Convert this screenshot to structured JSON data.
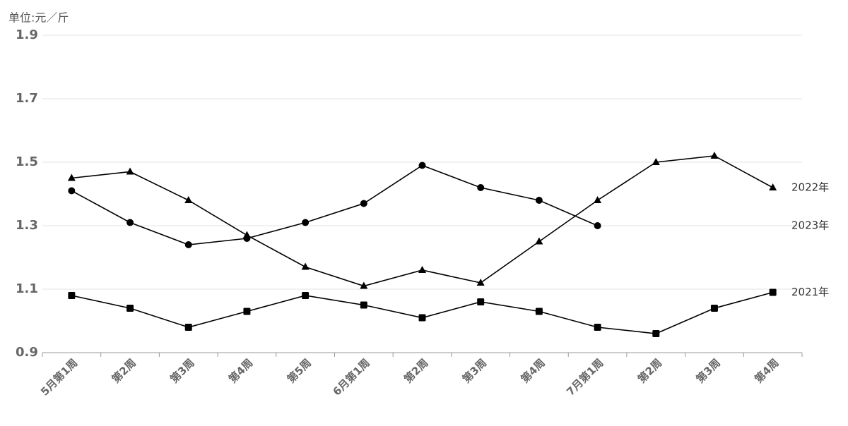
{
  "chart_data": {
    "type": "line",
    "ylabel": "单位:元／斤",
    "categories": [
      "5月第1周",
      "第2周",
      "第3周",
      "第4周",
      "第5周",
      "6月第1周",
      "第2周",
      "第3周",
      "第4周",
      "7月第1周",
      "第2周",
      "第3周",
      "第4周"
    ],
    "series": [
      {
        "name": "2022年",
        "color": "#000000",
        "marker": "triangle",
        "values": [
          1.45,
          1.47,
          1.38,
          1.27,
          1.17,
          1.11,
          1.16,
          1.12,
          1.25,
          1.38,
          1.5,
          1.52,
          1.42
        ]
      },
      {
        "name": "2023年",
        "color": "#000000",
        "marker": "circle",
        "values": [
          1.41,
          1.31,
          1.24,
          1.26,
          1.31,
          1.37,
          1.49,
          1.42,
          1.38,
          1.3,
          null,
          null,
          null
        ]
      },
      {
        "name": "2021年",
        "color": "#000000",
        "marker": "square",
        "values": [
          1.08,
          1.04,
          0.98,
          1.03,
          1.08,
          1.05,
          1.01,
          1.06,
          1.03,
          0.98,
          0.96,
          1.04,
          1.09
        ]
      }
    ],
    "ylim": [
      0.9,
      1.9
    ],
    "yticks": [
      0.9,
      1.1,
      1.3,
      1.5,
      1.7,
      1.9
    ],
    "grid": true
  }
}
